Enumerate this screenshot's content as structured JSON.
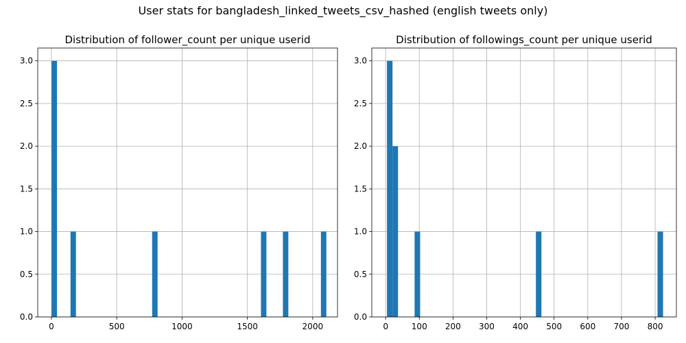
{
  "figure": {
    "suptitle": "User stats for bangladesh_linked_tweets_csv_hashed (english tweets only)"
  },
  "colors": {
    "bar": "#1f77b4",
    "grid": "#b0b0b0",
    "axis": "#000000",
    "background": "#ffffff"
  },
  "chart_data": [
    {
      "type": "bar",
      "title": "Distribution of follower_count per unique userid",
      "xlabel": "",
      "ylabel": "",
      "xlim": [
        -105,
        2190
      ],
      "ylim": [
        0,
        3.15
      ],
      "xticks": [
        0,
        500,
        1000,
        1500,
        2000
      ],
      "yticks": [
        0.0,
        0.5,
        1.0,
        1.5,
        2.0,
        2.5,
        3.0
      ],
      "grid": true,
      "bar_width": 41.6,
      "bars": [
        {
          "x": 1,
          "value": 3
        },
        {
          "x": 146,
          "value": 1
        },
        {
          "x": 771,
          "value": 1
        },
        {
          "x": 1604,
          "value": 1
        },
        {
          "x": 1772,
          "value": 1
        },
        {
          "x": 2063,
          "value": 1
        }
      ]
    },
    {
      "type": "bar",
      "title": "Distribution of followings_count per unique userid",
      "xlabel": "",
      "ylabel": "",
      "xlim": [
        -41,
        863
      ],
      "ylim": [
        0,
        3.15
      ],
      "xticks": [
        0,
        100,
        200,
        300,
        400,
        500,
        600,
        700,
        800
      ],
      "yticks": [
        0.0,
        0.5,
        1.0,
        1.5,
        2.0,
        2.5,
        3.0
      ],
      "grid": true,
      "bar_width": 16.4,
      "bars": [
        {
          "x": 4,
          "value": 3
        },
        {
          "x": 20.4,
          "value": 2
        },
        {
          "x": 86,
          "value": 1
        },
        {
          "x": 446,
          "value": 1
        },
        {
          "x": 807,
          "value": 1
        }
      ]
    }
  ]
}
